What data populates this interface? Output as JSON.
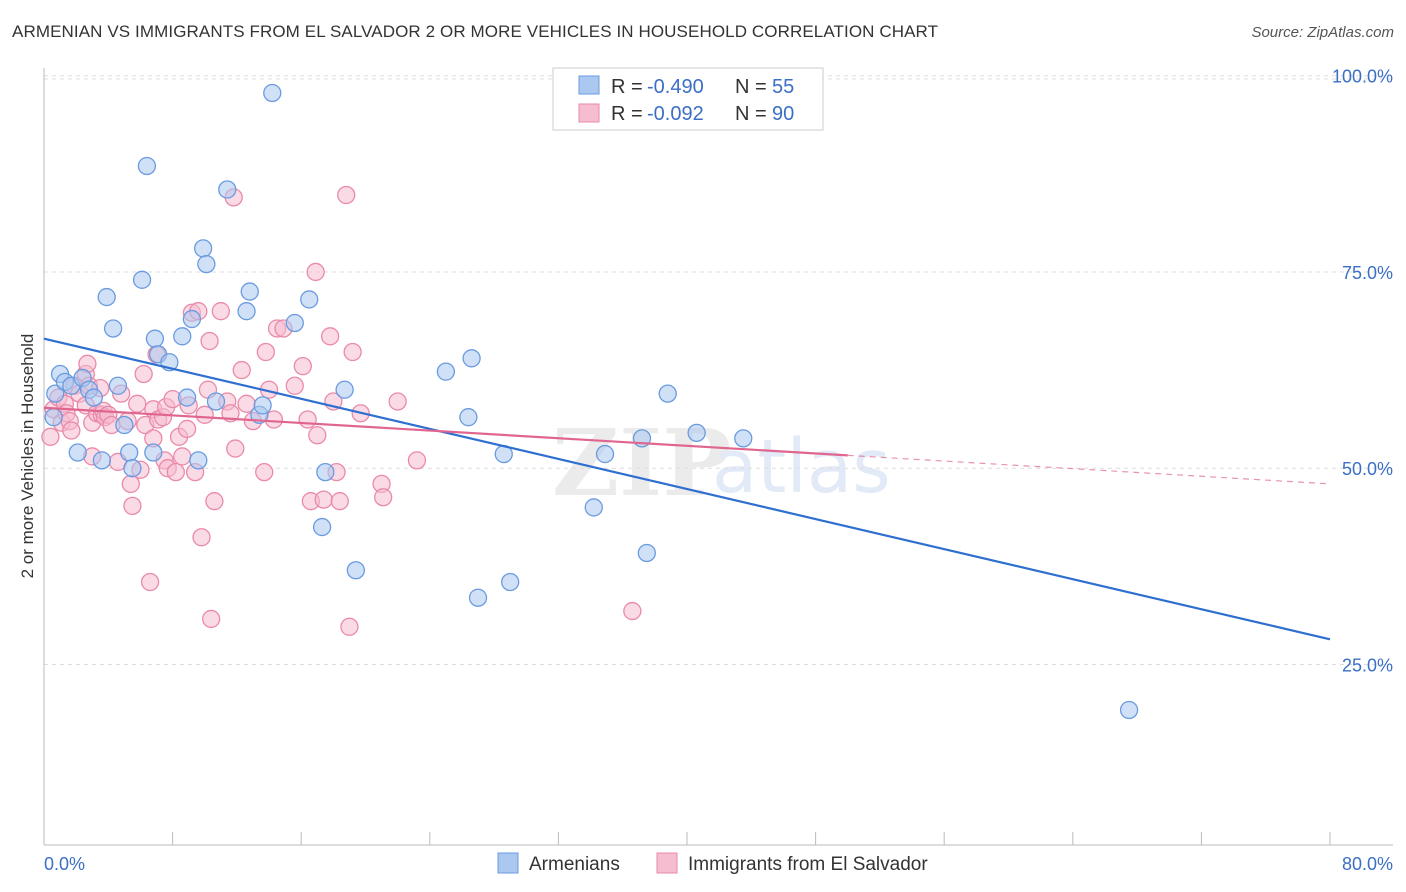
{
  "header": {
    "title": "ARMENIAN VS IMMIGRANTS FROM EL SALVADOR 2 OR MORE VEHICLES IN HOUSEHOLD CORRELATION CHART",
    "source": "Source: ZipAtlas.com"
  },
  "watermark": {
    "zip": "ZIP",
    "atlas": "atlas"
  },
  "colors": {
    "blue_fill": "#aac8f0",
    "blue_stroke": "#6a9be0",
    "blue_line": "#2f6fd0",
    "pink_fill": "#f6bccf",
    "pink_stroke": "#ea8aa9",
    "pink_line": "#e06690",
    "grid": "#dddddd",
    "label": "#3b6fc6"
  },
  "legend": {
    "rows": [
      {
        "r_label": "R = ",
        "r_value": "-0.490",
        "n_label": "N = ",
        "n_value": "55"
      },
      {
        "r_label": "R = ",
        "r_value": "-0.092",
        "n_label": "N = ",
        "n_value": "90"
      }
    ]
  },
  "chart_data": {
    "type": "scatter",
    "title": "ARMENIAN VS IMMIGRANTS FROM EL SALVADOR 2 OR MORE VEHICLES IN HOUSEHOLD CORRELATION CHART",
    "ylabel": "2 or more Vehicles in Household",
    "xlabel": "",
    "x_tick_labels": [
      "0.0%",
      "80.0%"
    ],
    "y_tick_labels": [
      "100.0%",
      "75.0%",
      "50.0%",
      "25.0%"
    ],
    "y_ticks": [
      100,
      75,
      50,
      25
    ],
    "xlim": [
      0,
      80
    ],
    "ylim": [
      2,
      102
    ],
    "grid": true,
    "legend_position": "top-center",
    "series": [
      {
        "name": "Armenians",
        "r": -0.49,
        "n": 55,
        "trend": {
          "x": [
            0,
            80
          ],
          "y": [
            66.5,
            28.2
          ],
          "dashed_from": null
        },
        "points": [
          [
            0.6,
            56.5
          ],
          [
            0.7,
            59.5
          ],
          [
            1.0,
            62.0
          ],
          [
            1.3,
            61.0
          ],
          [
            1.7,
            60.5
          ],
          [
            2.1,
            52.0
          ],
          [
            2.4,
            61.5
          ],
          [
            2.8,
            60.0
          ],
          [
            3.1,
            59.0
          ],
          [
            3.6,
            51.0
          ],
          [
            3.9,
            71.8
          ],
          [
            4.3,
            67.8
          ],
          [
            4.6,
            60.5
          ],
          [
            5.0,
            55.5
          ],
          [
            5.3,
            52.0
          ],
          [
            5.5,
            50.0
          ],
          [
            6.1,
            74.0
          ],
          [
            6.4,
            88.5
          ],
          [
            6.8,
            52.0
          ],
          [
            6.9,
            66.5
          ],
          [
            7.1,
            64.5
          ],
          [
            7.8,
            63.5
          ],
          [
            8.6,
            66.8
          ],
          [
            8.9,
            59.0
          ],
          [
            9.2,
            69.0
          ],
          [
            9.6,
            51.0
          ],
          [
            9.9,
            78.0
          ],
          [
            10.1,
            76.0
          ],
          [
            10.7,
            58.5
          ],
          [
            11.4,
            85.5
          ],
          [
            12.6,
            70.0
          ],
          [
            12.8,
            72.5
          ],
          [
            13.4,
            56.8
          ],
          [
            13.6,
            58.0
          ],
          [
            14.2,
            97.8
          ],
          [
            15.6,
            68.5
          ],
          [
            16.5,
            71.5
          ],
          [
            17.3,
            42.5
          ],
          [
            17.5,
            49.5
          ],
          [
            18.7,
            60.0
          ],
          [
            19.4,
            37.0
          ],
          [
            25.0,
            62.3
          ],
          [
            26.4,
            56.5
          ],
          [
            26.6,
            64.0
          ],
          [
            27.0,
            33.5
          ],
          [
            28.6,
            51.8
          ],
          [
            29.0,
            35.5
          ],
          [
            34.2,
            45.0
          ],
          [
            34.9,
            51.8
          ],
          [
            37.2,
            53.8
          ],
          [
            37.5,
            39.2
          ],
          [
            38.8,
            59.5
          ],
          [
            40.6,
            54.5
          ],
          [
            43.5,
            53.8
          ],
          [
            67.5,
            19.2
          ]
        ]
      },
      {
        "name": "Immigrants from El Salvador",
        "r": -0.092,
        "n": 90,
        "trend": {
          "x": [
            0,
            80
          ],
          "y": [
            57.7,
            48.0
          ],
          "dashed_from": 50
        },
        "points": [
          [
            0.4,
            54.0
          ],
          [
            0.6,
            57.5
          ],
          [
            0.9,
            59.0
          ],
          [
            1.1,
            55.8
          ],
          [
            1.3,
            58.2
          ],
          [
            1.4,
            57.0
          ],
          [
            1.6,
            56.0
          ],
          [
            1.7,
            54.8
          ],
          [
            1.9,
            60.5
          ],
          [
            2.2,
            59.5
          ],
          [
            2.6,
            58.0
          ],
          [
            2.6,
            62.0
          ],
          [
            2.7,
            63.3
          ],
          [
            2.8,
            60.5
          ],
          [
            3.0,
            51.5
          ],
          [
            3.0,
            55.8
          ],
          [
            3.3,
            57.0
          ],
          [
            3.5,
            60.2
          ],
          [
            3.6,
            56.8
          ],
          [
            3.7,
            57.3
          ],
          [
            3.8,
            56.5
          ],
          [
            4.0,
            56.8
          ],
          [
            4.2,
            55.5
          ],
          [
            4.6,
            50.8
          ],
          [
            4.8,
            59.5
          ],
          [
            5.2,
            56.0
          ],
          [
            5.4,
            48.0
          ],
          [
            5.5,
            45.2
          ],
          [
            5.8,
            58.2
          ],
          [
            6.0,
            49.8
          ],
          [
            6.2,
            62.0
          ],
          [
            6.3,
            55.5
          ],
          [
            6.6,
            35.5
          ],
          [
            6.8,
            57.5
          ],
          [
            6.8,
            53.8
          ],
          [
            7.0,
            64.5
          ],
          [
            7.1,
            56.2
          ],
          [
            7.4,
            56.5
          ],
          [
            7.5,
            51.0
          ],
          [
            7.6,
            57.8
          ],
          [
            7.7,
            50.0
          ],
          [
            8.0,
            58.8
          ],
          [
            8.2,
            49.5
          ],
          [
            8.4,
            54.0
          ],
          [
            8.6,
            51.5
          ],
          [
            8.9,
            55.0
          ],
          [
            9.0,
            58.0
          ],
          [
            9.2,
            69.8
          ],
          [
            9.4,
            49.5
          ],
          [
            9.6,
            70.0
          ],
          [
            9.8,
            41.2
          ],
          [
            10.0,
            56.8
          ],
          [
            10.2,
            60.0
          ],
          [
            10.3,
            66.2
          ],
          [
            10.4,
            30.8
          ],
          [
            10.6,
            45.8
          ],
          [
            11.0,
            70.0
          ],
          [
            11.4,
            58.5
          ],
          [
            11.6,
            57.0
          ],
          [
            11.8,
            84.5
          ],
          [
            11.9,
            52.5
          ],
          [
            12.3,
            62.5
          ],
          [
            12.6,
            58.2
          ],
          [
            13.0,
            56.0
          ],
          [
            13.7,
            49.5
          ],
          [
            13.8,
            64.8
          ],
          [
            14.0,
            60.0
          ],
          [
            14.3,
            56.2
          ],
          [
            14.5,
            67.8
          ],
          [
            14.9,
            67.8
          ],
          [
            15.6,
            60.5
          ],
          [
            16.1,
            63.0
          ],
          [
            16.4,
            56.2
          ],
          [
            16.6,
            45.8
          ],
          [
            16.9,
            75.0
          ],
          [
            17.0,
            54.2
          ],
          [
            17.4,
            46.0
          ],
          [
            17.8,
            66.8
          ],
          [
            18.0,
            58.5
          ],
          [
            18.2,
            49.5
          ],
          [
            18.4,
            45.8
          ],
          [
            18.8,
            84.8
          ],
          [
            19.0,
            29.8
          ],
          [
            19.2,
            64.8
          ],
          [
            19.7,
            57.0
          ],
          [
            21.0,
            48.0
          ],
          [
            21.1,
            46.3
          ],
          [
            22.0,
            58.5
          ],
          [
            23.2,
            51.0
          ],
          [
            36.6,
            31.8
          ]
        ]
      }
    ]
  }
}
